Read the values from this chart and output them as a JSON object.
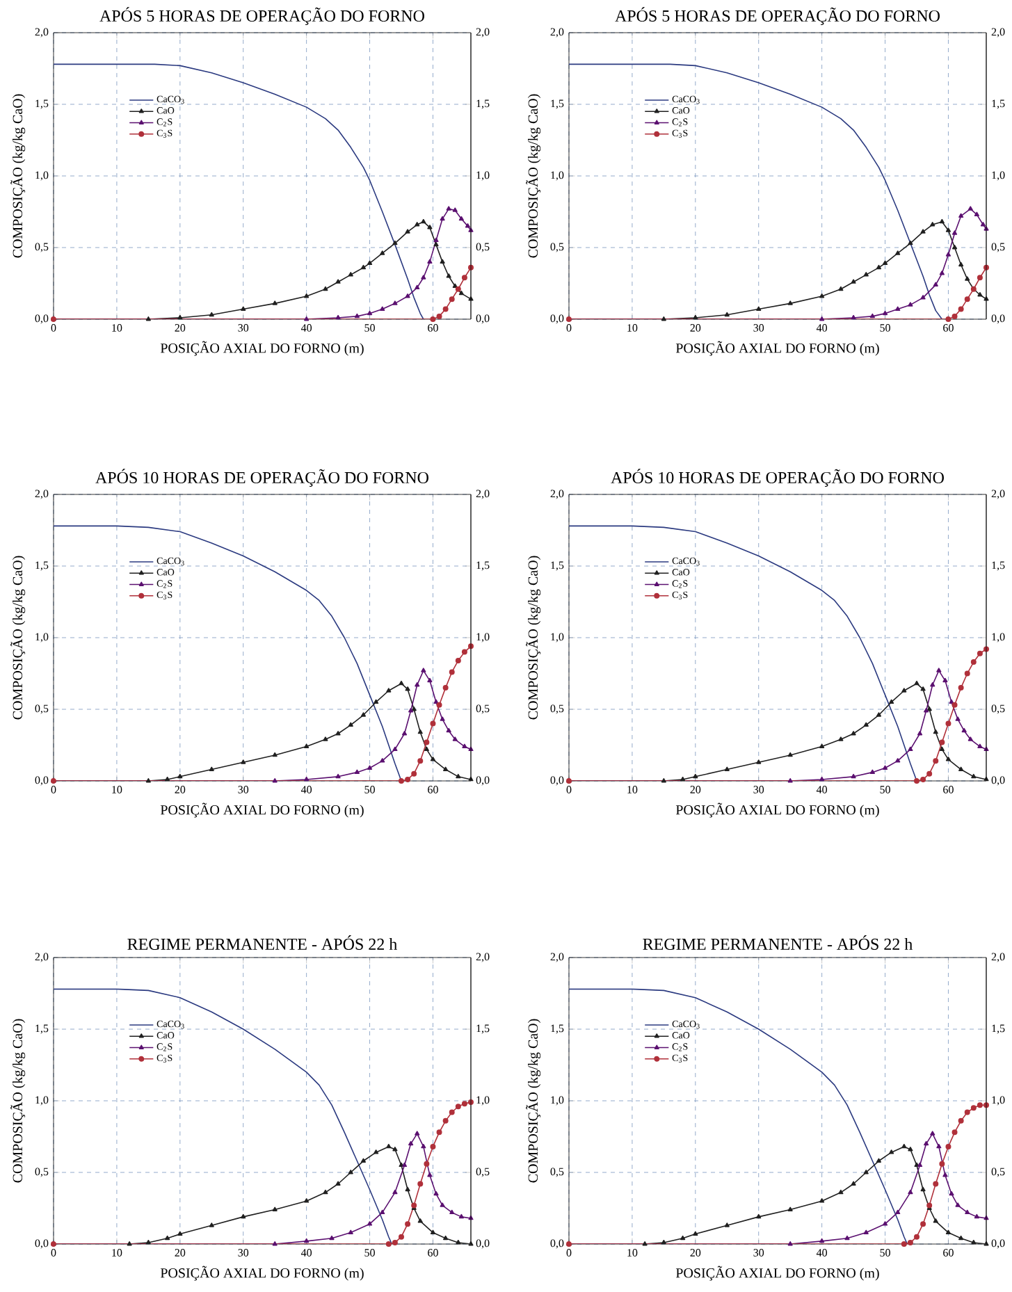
{
  "chart_data": [
    {
      "type": "line",
      "title": "APÓS 5 HORAS DE OPERAÇÃO DO FORNO",
      "xlabel": "POSIÇÃO AXIAL DO FORNO (m)",
      "ylabel": "COMPOSIÇÃO (kg/kg CaO)",
      "xlim": [
        0,
        66
      ],
      "xticks": [
        0,
        10,
        20,
        30,
        40,
        50,
        60
      ],
      "ylim": [
        0,
        2
      ],
      "yticks": [
        {
          "value": 0,
          "label": "0,0"
        },
        {
          "value": 0.5,
          "label": "0,5"
        },
        {
          "value": 1,
          "label": "1,0"
        },
        {
          "value": 1.5,
          "label": "1,5"
        },
        {
          "value": 2,
          "label": "2,0"
        }
      ],
      "y2lim": [
        0,
        2
      ],
      "y2ticks": [
        {
          "value": 0,
          "label": "0,0"
        },
        {
          "value": 0.5,
          "label": "0,5"
        },
        {
          "value": 1,
          "label": "1,0"
        },
        {
          "value": 1.5,
          "label": "1,5"
        },
        {
          "value": 2,
          "label": "2,0"
        }
      ],
      "grid": true,
      "legend": "top left",
      "line_style": "solid",
      "series": [
        {
          "name": "CaCO$_{3}$",
          "color": "#2b3a80",
          "marker": "none",
          "x": [
            0,
            10,
            16,
            20,
            25,
            30,
            35,
            40,
            43,
            45,
            47,
            49,
            50,
            52,
            54,
            56,
            57,
            58,
            58.5
          ],
          "values": [
            1.78,
            1.78,
            1.78,
            1.77,
            1.72,
            1.65,
            1.57,
            1.48,
            1.4,
            1.32,
            1.2,
            1.06,
            0.97,
            0.75,
            0.52,
            0.28,
            0.15,
            0.04,
            0.0
          ]
        },
        {
          "name": "CaO",
          "color": "#202020",
          "marker": "triangle",
          "x": [
            0,
            15,
            20,
            25,
            30,
            35,
            40,
            43,
            45,
            47,
            49,
            50,
            52,
            54,
            56,
            57.5,
            58.5,
            59.5,
            60.5,
            61.5,
            62.5,
            63.5,
            64.5,
            66
          ],
          "values": [
            0,
            0,
            0.01,
            0.03,
            0.07,
            0.11,
            0.16,
            0.21,
            0.26,
            0.31,
            0.36,
            0.39,
            0.46,
            0.53,
            0.61,
            0.66,
            0.68,
            0.64,
            0.52,
            0.4,
            0.3,
            0.23,
            0.18,
            0.14
          ]
        },
        {
          "name": "C$_{2}$S",
          "color": "#5b1070",
          "marker": "triangle",
          "x": [
            0,
            40,
            45,
            48,
            50,
            52,
            54,
            56,
            57.5,
            58.5,
            59.5,
            60.5,
            61.5,
            62.5,
            63.5,
            64.5,
            65.5,
            66
          ],
          "values": [
            0,
            0,
            0.01,
            0.02,
            0.04,
            0.07,
            0.11,
            0.16,
            0.22,
            0.29,
            0.4,
            0.55,
            0.7,
            0.77,
            0.76,
            0.7,
            0.65,
            0.62
          ]
        },
        {
          "name": "C$_{3}$S",
          "color": "#b0303a",
          "marker": "circle",
          "x": [
            0,
            60,
            61,
            62,
            63,
            64,
            65,
            66
          ],
          "values": [
            0,
            0,
            0.02,
            0.07,
            0.14,
            0.21,
            0.29,
            0.36
          ]
        }
      ]
    },
    {
      "type": "line",
      "title": "APÓS 5 HORAS DE OPERAÇÃO DO FORNO",
      "xlabel": "POSIÇÃO AXIAL DO FORNO (m)",
      "ylabel": "COMPOSIÇÃO (kg/kg CaO)",
      "xlim": [
        0,
        66
      ],
      "xticks": [
        0,
        10,
        20,
        30,
        40,
        50,
        60
      ],
      "ylim": [
        0,
        2
      ],
      "yticks": [
        {
          "value": 0,
          "label": "0,0"
        },
        {
          "value": 0.5,
          "label": "0,5"
        },
        {
          "value": 1,
          "label": "1,0"
        },
        {
          "value": 1.5,
          "label": "1,5"
        },
        {
          "value": 2,
          "label": "2,0"
        }
      ],
      "y2lim": [
        0,
        2
      ],
      "y2ticks": [
        {
          "value": 0,
          "label": "0,0"
        },
        {
          "value": 0.5,
          "label": "0,5"
        },
        {
          "value": 1,
          "label": "1,0"
        },
        {
          "value": 1.5,
          "label": "1,5"
        },
        {
          "value": 2,
          "label": "2,0"
        }
      ],
      "grid": true,
      "legend": "top left",
      "line_style": "solid",
      "series": [
        {
          "name": "CaCO$_{3}$",
          "color": "#2b3a80",
          "marker": "none",
          "x": [
            0,
            10,
            16,
            20,
            25,
            30,
            35,
            40,
            43,
            45,
            47,
            49,
            50,
            52,
            54,
            56,
            57,
            58,
            59
          ],
          "values": [
            1.78,
            1.78,
            1.78,
            1.77,
            1.72,
            1.65,
            1.57,
            1.48,
            1.4,
            1.32,
            1.2,
            1.06,
            0.97,
            0.76,
            0.53,
            0.3,
            0.17,
            0.06,
            0.0
          ]
        },
        {
          "name": "CaO",
          "color": "#202020",
          "marker": "triangle",
          "x": [
            0,
            15,
            20,
            25,
            30,
            35,
            40,
            43,
            45,
            47,
            49,
            50,
            52,
            54,
            56,
            57.5,
            59,
            60,
            61,
            62,
            63,
            64,
            65,
            66
          ],
          "values": [
            0,
            0,
            0.01,
            0.03,
            0.07,
            0.11,
            0.16,
            0.21,
            0.26,
            0.31,
            0.36,
            0.39,
            0.46,
            0.53,
            0.61,
            0.66,
            0.68,
            0.62,
            0.5,
            0.38,
            0.28,
            0.21,
            0.17,
            0.14
          ]
        },
        {
          "name": "C$_{2}$S",
          "color": "#5b1070",
          "marker": "triangle",
          "x": [
            0,
            40,
            45,
            48,
            50,
            52,
            54,
            56,
            58,
            59,
            60,
            61,
            62,
            63.5,
            64.5,
            65.5,
            66
          ],
          "values": [
            0,
            0,
            0.01,
            0.02,
            0.04,
            0.07,
            0.1,
            0.15,
            0.24,
            0.32,
            0.45,
            0.6,
            0.72,
            0.77,
            0.73,
            0.66,
            0.63
          ]
        },
        {
          "name": "C$_{3}$S",
          "color": "#b0303a",
          "marker": "circle",
          "x": [
            0,
            60,
            61,
            62,
            63,
            64,
            65,
            66
          ],
          "values": [
            0,
            0,
            0.02,
            0.07,
            0.14,
            0.21,
            0.29,
            0.36
          ]
        }
      ]
    },
    {
      "type": "line",
      "title": "APÓS 10 HORAS DE OPERAÇÃO DO FORNO",
      "xlabel": "POSIÇÃO AXIAL DO FORNO (m)",
      "ylabel": "COMPOSIÇÃO (kg/kg CaO)",
      "xlim": [
        0,
        66
      ],
      "xticks": [
        0,
        10,
        20,
        30,
        40,
        50,
        60
      ],
      "ylim": [
        0,
        2
      ],
      "yticks": [
        {
          "value": 0,
          "label": "0,0"
        },
        {
          "value": 0.5,
          "label": "0,5"
        },
        {
          "value": 1,
          "label": "1,0"
        },
        {
          "value": 1.5,
          "label": "1,5"
        },
        {
          "value": 2,
          "label": "2,0"
        }
      ],
      "y2lim": [
        0,
        2
      ],
      "y2ticks": [
        {
          "value": 0,
          "label": "0,0"
        },
        {
          "value": 0.5,
          "label": "0,5"
        },
        {
          "value": 1,
          "label": "1,0"
        },
        {
          "value": 1.5,
          "label": "1,5"
        },
        {
          "value": 2,
          "label": "2,0"
        }
      ],
      "grid": true,
      "legend": "top left",
      "line_style": "solid",
      "series": [
        {
          "name": "CaCO$_{3}$",
          "color": "#2b3a80",
          "marker": "none",
          "x": [
            0,
            10,
            15,
            20,
            25,
            30,
            35,
            40,
            42,
            44,
            46,
            48,
            50,
            52,
            53,
            54,
            55
          ],
          "values": [
            1.78,
            1.78,
            1.77,
            1.74,
            1.66,
            1.57,
            1.46,
            1.33,
            1.26,
            1.15,
            1.0,
            0.82,
            0.6,
            0.38,
            0.25,
            0.12,
            0.0
          ]
        },
        {
          "name": "CaO",
          "color": "#202020",
          "marker": "triangle",
          "x": [
            0,
            15,
            18,
            20,
            25,
            30,
            35,
            40,
            43,
            45,
            47,
            49,
            51,
            53,
            55,
            56,
            57,
            58,
            59,
            60,
            62,
            64,
            66
          ],
          "values": [
            0,
            0,
            0.01,
            0.03,
            0.08,
            0.13,
            0.18,
            0.24,
            0.29,
            0.33,
            0.39,
            0.46,
            0.55,
            0.63,
            0.68,
            0.64,
            0.5,
            0.34,
            0.22,
            0.15,
            0.08,
            0.03,
            0.01
          ]
        },
        {
          "name": "C$_{2}$S",
          "color": "#5b1070",
          "marker": "triangle",
          "x": [
            0,
            35,
            40,
            45,
            48,
            50,
            52,
            54,
            55.5,
            56.5,
            57.5,
            58.5,
            59.5,
            60.5,
            61.5,
            62.5,
            63.5,
            65,
            66
          ],
          "values": [
            0,
            0,
            0.01,
            0.03,
            0.06,
            0.09,
            0.14,
            0.22,
            0.33,
            0.49,
            0.67,
            0.77,
            0.7,
            0.55,
            0.43,
            0.35,
            0.29,
            0.24,
            0.22
          ]
        },
        {
          "name": "C$_{3}$S",
          "color": "#b0303a",
          "marker": "circle",
          "x": [
            0,
            55,
            56,
            57,
            58,
            59,
            60,
            61,
            62,
            63,
            64,
            65,
            66
          ],
          "values": [
            0,
            0,
            0.01,
            0.05,
            0.14,
            0.27,
            0.4,
            0.53,
            0.65,
            0.76,
            0.84,
            0.9,
            0.94
          ]
        }
      ]
    },
    {
      "type": "line",
      "title": "APÓS 10 HORAS DE OPERAÇÃO DO FORNO",
      "xlabel": "POSIÇÃO AXIAL DO FORNO (m)",
      "ylabel": "COMPOSIÇÃO (kg/kg CaO)",
      "xlim": [
        0,
        66
      ],
      "xticks": [
        0,
        10,
        20,
        30,
        40,
        50,
        60
      ],
      "ylim": [
        0,
        2
      ],
      "yticks": [
        {
          "value": 0,
          "label": "0,0"
        },
        {
          "value": 0.5,
          "label": "0,5"
        },
        {
          "value": 1,
          "label": "1,0"
        },
        {
          "value": 1.5,
          "label": "1,5"
        },
        {
          "value": 2,
          "label": "2,0"
        }
      ],
      "y2lim": [
        0,
        2
      ],
      "y2ticks": [
        {
          "value": 0,
          "label": "0,0"
        },
        {
          "value": 0.5,
          "label": "0,5"
        },
        {
          "value": 1,
          "label": "1,0"
        },
        {
          "value": 1.5,
          "label": "1,5"
        },
        {
          "value": 2,
          "label": "2,0"
        }
      ],
      "grid": true,
      "legend": "top left",
      "line_style": "solid",
      "series": [
        {
          "name": "CaCO$_{3}$",
          "color": "#2b3a80",
          "marker": "none",
          "x": [
            0,
            10,
            15,
            20,
            25,
            30,
            35,
            40,
            42,
            44,
            46,
            48,
            50,
            52,
            53,
            54,
            55
          ],
          "values": [
            1.78,
            1.78,
            1.77,
            1.74,
            1.66,
            1.57,
            1.46,
            1.33,
            1.26,
            1.15,
            1.0,
            0.82,
            0.6,
            0.38,
            0.25,
            0.12,
            0.0
          ]
        },
        {
          "name": "CaO",
          "color": "#202020",
          "marker": "triangle",
          "x": [
            0,
            15,
            18,
            20,
            25,
            30,
            35,
            40,
            43,
            45,
            47,
            49,
            51,
            53,
            55,
            56,
            57,
            58,
            59,
            60,
            62,
            64,
            66
          ],
          "values": [
            0,
            0,
            0.01,
            0.03,
            0.08,
            0.13,
            0.18,
            0.24,
            0.29,
            0.33,
            0.39,
            0.46,
            0.55,
            0.63,
            0.68,
            0.64,
            0.5,
            0.34,
            0.22,
            0.15,
            0.08,
            0.03,
            0.01
          ]
        },
        {
          "name": "C$_{2}$S",
          "color": "#5b1070",
          "marker": "triangle",
          "x": [
            0,
            35,
            40,
            45,
            48,
            50,
            52,
            54,
            55.5,
            56.5,
            57.5,
            58.5,
            59.5,
            60.5,
            61.5,
            62.5,
            63.5,
            65,
            66
          ],
          "values": [
            0,
            0,
            0.01,
            0.03,
            0.06,
            0.09,
            0.14,
            0.22,
            0.33,
            0.49,
            0.67,
            0.77,
            0.7,
            0.55,
            0.43,
            0.35,
            0.29,
            0.24,
            0.22
          ]
        },
        {
          "name": "C$_{3}$S",
          "color": "#b0303a",
          "marker": "circle",
          "x": [
            0,
            55,
            56,
            57,
            58,
            59,
            60,
            61,
            62,
            63,
            64,
            65,
            66
          ],
          "values": [
            0,
            0,
            0.01,
            0.05,
            0.14,
            0.27,
            0.4,
            0.53,
            0.65,
            0.75,
            0.83,
            0.89,
            0.92
          ]
        }
      ]
    },
    {
      "type": "line",
      "title": "REGIME PERMANENTE - APÓS 22 h",
      "xlabel": "POSIÇÃO AXIAL DO FORNO (m)",
      "ylabel": "COMPOSIÇÃO (kg/kg CaO)",
      "xlim": [
        0,
        66
      ],
      "xticks": [
        0,
        10,
        20,
        30,
        40,
        50,
        60
      ],
      "ylim": [
        0,
        2
      ],
      "yticks": [
        {
          "value": 0,
          "label": "0,0"
        },
        {
          "value": 0.5,
          "label": "0,5"
        },
        {
          "value": 1,
          "label": "1,0"
        },
        {
          "value": 1.5,
          "label": "1,5"
        },
        {
          "value": 2,
          "label": "2,0"
        }
      ],
      "y2lim": [
        0,
        2
      ],
      "y2ticks": [
        {
          "value": 0,
          "label": "0,0"
        },
        {
          "value": 0.5,
          "label": "0,5"
        },
        {
          "value": 1,
          "label": "1,0"
        },
        {
          "value": 1.5,
          "label": "1,5"
        },
        {
          "value": 2,
          "label": "2,0"
        }
      ],
      "grid": true,
      "legend": "top left",
      "line_style": "solid",
      "series": [
        {
          "name": "CaCO$_{3}$",
          "color": "#2b3a80",
          "marker": "none",
          "x": [
            0,
            10,
            15,
            20,
            25,
            30,
            35,
            40,
            42,
            44,
            46,
            48,
            50,
            52,
            53,
            53.5
          ],
          "values": [
            1.78,
            1.78,
            1.77,
            1.72,
            1.62,
            1.5,
            1.36,
            1.2,
            1.11,
            0.97,
            0.78,
            0.58,
            0.38,
            0.17,
            0.05,
            0.0
          ]
        },
        {
          "name": "CaO",
          "color": "#202020",
          "marker": "triangle",
          "x": [
            0,
            12,
            15,
            18,
            20,
            25,
            30,
            35,
            40,
            43,
            45,
            47,
            49,
            51,
            53,
            54,
            55,
            56,
            57,
            58,
            60,
            62,
            64,
            66
          ],
          "values": [
            0,
            0,
            0.01,
            0.04,
            0.07,
            0.13,
            0.19,
            0.24,
            0.3,
            0.36,
            0.42,
            0.5,
            0.58,
            0.64,
            0.68,
            0.66,
            0.55,
            0.38,
            0.25,
            0.16,
            0.08,
            0.04,
            0.01,
            0.0
          ]
        },
        {
          "name": "C$_{2}$S",
          "color": "#5b1070",
          "marker": "triangle",
          "x": [
            0,
            35,
            40,
            44,
            47,
            50,
            52,
            54,
            55.5,
            56.5,
            57.5,
            58.5,
            59.5,
            60.5,
            61.5,
            63,
            64.5,
            66
          ],
          "values": [
            0,
            0,
            0.02,
            0.04,
            0.08,
            0.14,
            0.22,
            0.36,
            0.55,
            0.7,
            0.77,
            0.68,
            0.48,
            0.35,
            0.27,
            0.22,
            0.19,
            0.18
          ]
        },
        {
          "name": "C$_{3}$S",
          "color": "#b0303a",
          "marker": "circle",
          "x": [
            0,
            53,
            54,
            55,
            56,
            57,
            58,
            59,
            60,
            61,
            62,
            63,
            64,
            65,
            66
          ],
          "values": [
            0,
            0,
            0.01,
            0.05,
            0.14,
            0.27,
            0.42,
            0.56,
            0.68,
            0.78,
            0.86,
            0.92,
            0.96,
            0.98,
            0.99
          ]
        }
      ]
    },
    {
      "type": "line",
      "title": "REGIME PERMANENTE - APÓS 22 h",
      "xlabel": "POSIÇÃO AXIAL DO FORNO (m)",
      "ylabel": "COMPOSIÇÃO (kg/kg CaO)",
      "xlim": [
        0,
        66
      ],
      "xticks": [
        0,
        10,
        20,
        30,
        40,
        50,
        60
      ],
      "ylim": [
        0,
        2
      ],
      "yticks": [
        {
          "value": 0,
          "label": "0,0"
        },
        {
          "value": 0.5,
          "label": "0,5"
        },
        {
          "value": 1,
          "label": "1,0"
        },
        {
          "value": 1.5,
          "label": "1,5"
        },
        {
          "value": 2,
          "label": "2,0"
        }
      ],
      "y2lim": [
        0,
        2
      ],
      "y2ticks": [
        {
          "value": 0,
          "label": "0,0"
        },
        {
          "value": 0.5,
          "label": "0,5"
        },
        {
          "value": 1,
          "label": "1,0"
        },
        {
          "value": 1.5,
          "label": "1,5"
        },
        {
          "value": 2,
          "label": "2,0"
        }
      ],
      "grid": true,
      "legend": "top left",
      "line_style": "solid",
      "series": [
        {
          "name": "CaCO$_{3}$",
          "color": "#2b3a80",
          "marker": "none",
          "x": [
            0,
            10,
            15,
            20,
            25,
            30,
            35,
            40,
            42,
            44,
            46,
            48,
            50,
            52,
            53,
            53.5
          ],
          "values": [
            1.78,
            1.78,
            1.77,
            1.72,
            1.62,
            1.5,
            1.36,
            1.2,
            1.11,
            0.97,
            0.78,
            0.58,
            0.38,
            0.17,
            0.05,
            0.0
          ]
        },
        {
          "name": "CaO",
          "color": "#202020",
          "marker": "triangle",
          "x": [
            0,
            12,
            15,
            18,
            20,
            25,
            30,
            35,
            40,
            43,
            45,
            47,
            49,
            51,
            53,
            54,
            55,
            56,
            57,
            58,
            60,
            62,
            64,
            66
          ],
          "values": [
            0,
            0,
            0.01,
            0.04,
            0.07,
            0.13,
            0.19,
            0.24,
            0.3,
            0.36,
            0.42,
            0.5,
            0.58,
            0.64,
            0.68,
            0.66,
            0.55,
            0.38,
            0.25,
            0.16,
            0.08,
            0.04,
            0.01,
            0.0
          ]
        },
        {
          "name": "C$_{2}$S",
          "color": "#5b1070",
          "marker": "triangle",
          "x": [
            0,
            35,
            40,
            44,
            47,
            50,
            52,
            54,
            55.5,
            56.5,
            57.5,
            58.5,
            59.5,
            60.5,
            61.5,
            63,
            64.5,
            66
          ],
          "values": [
            0,
            0,
            0.02,
            0.04,
            0.08,
            0.14,
            0.22,
            0.36,
            0.55,
            0.7,
            0.77,
            0.68,
            0.48,
            0.35,
            0.27,
            0.22,
            0.19,
            0.18
          ]
        },
        {
          "name": "C$_{3}$S",
          "color": "#b0303a",
          "marker": "circle",
          "x": [
            0,
            53,
            54,
            55,
            56,
            57,
            58,
            59,
            60,
            61,
            62,
            63,
            64,
            65,
            66
          ],
          "values": [
            0,
            0,
            0.01,
            0.05,
            0.14,
            0.27,
            0.42,
            0.56,
            0.68,
            0.78,
            0.86,
            0.92,
            0.95,
            0.97,
            0.97
          ]
        }
      ]
    }
  ]
}
